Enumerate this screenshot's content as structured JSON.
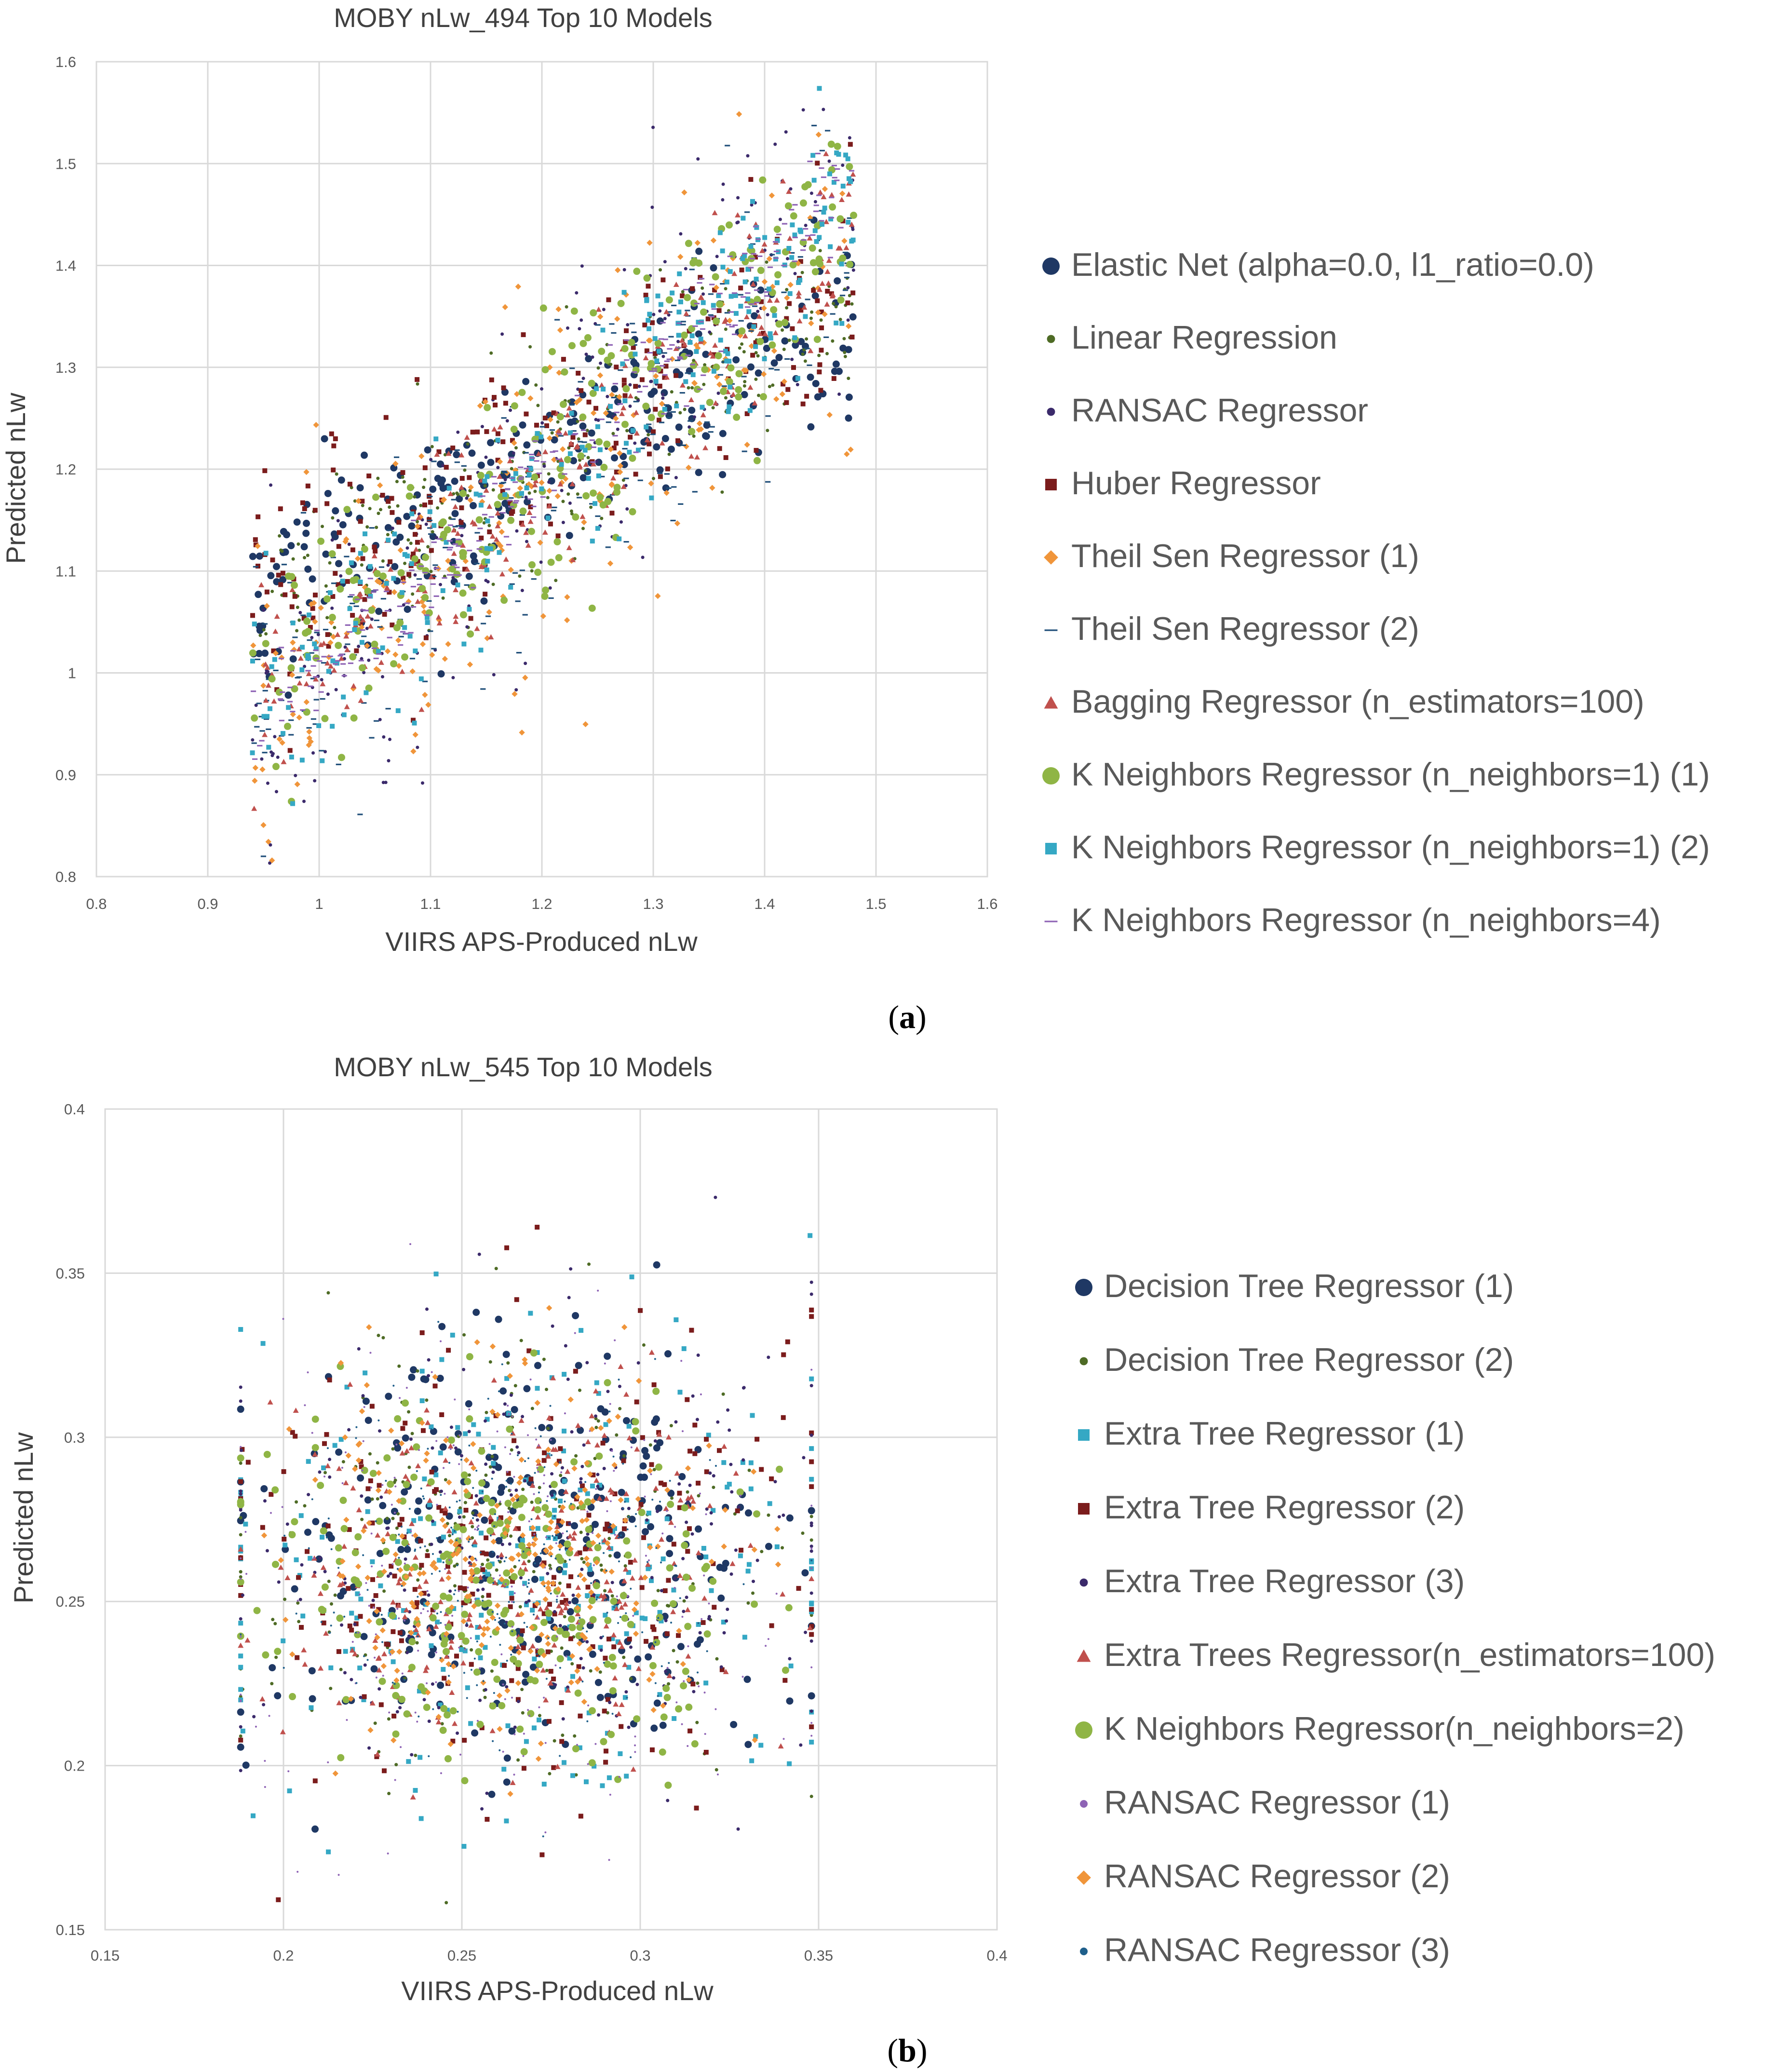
{
  "chart_data": [
    {
      "type": "scatter",
      "panel_label": "a",
      "title": "MOBY nLw_494 Top 10 Models",
      "xlabel": "VIIRS APS-Produced nLw",
      "ylabel": "Predicted nLw",
      "xlim": [
        0.8,
        1.6
      ],
      "ylim": [
        0.8,
        1.6
      ],
      "x_ticks": [
        "0.8",
        "0.9",
        "1",
        "1.1",
        "1.2",
        "1.3",
        "1.4",
        "1.5",
        "1.6"
      ],
      "y_ticks": [
        "0.8",
        "0.9",
        "1",
        "1.1",
        "1.2",
        "1.3",
        "1.4",
        "1.5",
        "1.6"
      ],
      "x_ticks_values": [
        0.8,
        0.9,
        1.0,
        1.1,
        1.2,
        1.3,
        1.4,
        1.5,
        1.6
      ],
      "y_ticks_values": [
        0.8,
        0.9,
        1.0,
        1.1,
        1.2,
        1.3,
        1.4,
        1.5,
        1.6
      ],
      "grid": true,
      "legend_position": "right",
      "x_data_range": [
        0.94,
        1.48
      ],
      "series": [
        {
          "name": "Elastic Net (alpha=0.0, l1_ratio=0.0)",
          "marker": "circle",
          "color": "#1f3864",
          "size": "large",
          "slope": 0.55,
          "intercept": 0.55,
          "spread": 0.05
        },
        {
          "name": "Linear Regression",
          "marker": "circle",
          "color": "#4e6b25",
          "size": "small",
          "slope": 0.55,
          "intercept": 0.55,
          "spread": 0.05
        },
        {
          "name": "RANSAC Regressor",
          "marker": "circle",
          "color": "#3b2a6b",
          "size": "small",
          "slope": 1.0,
          "intercept": 0.0,
          "spread": 0.09
        },
        {
          "name": "Huber Regressor",
          "marker": "square",
          "color": "#7b1c1c",
          "size": "medium",
          "slope": 0.6,
          "intercept": 0.5,
          "spread": 0.06
        },
        {
          "name": "Theil Sen Regressor (1)",
          "marker": "diamond",
          "color": "#f0953a",
          "size": "medium",
          "slope": 0.8,
          "intercept": 0.22,
          "spread": 0.08
        },
        {
          "name": "Theil Sen Regressor (2)",
          "marker": "dash",
          "color": "#1f4e79",
          "size": "small",
          "slope": 0.8,
          "intercept": 0.22,
          "spread": 0.07
        },
        {
          "name": "Bagging Regressor (n_estimators=100)",
          "marker": "triangle",
          "color": "#c0504d",
          "size": "medium",
          "slope": 0.9,
          "intercept": 0.12,
          "spread": 0.05
        },
        {
          "name": "K Neighbors Regressor (n_neighbors=1) (1)",
          "marker": "circle",
          "color": "#8fb545",
          "size": "large",
          "slope": 0.9,
          "intercept": 0.12,
          "spread": 0.06
        },
        {
          "name": "K Neighbors Regressor (n_neighbors=1) (2)",
          "marker": "square",
          "color": "#35a8c4",
          "size": "medium",
          "slope": 0.95,
          "intercept": 0.06,
          "spread": 0.05
        },
        {
          "name": "K Neighbors Regressor (n_neighbors=4)",
          "marker": "dash",
          "color": "#8e63b5",
          "size": "small",
          "slope": 1.0,
          "intercept": 0.0,
          "spread": 0.025
        }
      ]
    },
    {
      "type": "scatter",
      "panel_label": "b",
      "title": "MOBY nLw_545 Top 10 Models",
      "xlabel": "VIIRS APS-Produced nLw",
      "ylabel": "Predicted nLw",
      "xlim": [
        0.15,
        0.4
      ],
      "ylim": [
        0.15,
        0.4
      ],
      "x_ticks": [
        "0.15",
        "0.2",
        "0.25",
        "0.3",
        "0.35",
        "0.4"
      ],
      "y_ticks": [
        "0.15",
        "0.2",
        "0.25",
        "0.3",
        "0.35",
        "0.4"
      ],
      "x_ticks_values": [
        0.15,
        0.2,
        0.25,
        0.3,
        0.35,
        0.4
      ],
      "y_ticks_values": [
        0.15,
        0.2,
        0.25,
        0.3,
        0.35,
        0.4
      ],
      "grid": true,
      "legend_position": "right",
      "x_data_range": [
        0.188,
        0.348
      ],
      "series": [
        {
          "name": "Decision Tree Regressor (1)",
          "marker": "circle",
          "color": "#1f3864",
          "size": "large",
          "center": [
            0.265,
            0.262
          ],
          "spread": [
            0.04,
            0.035
          ]
        },
        {
          "name": "Decision Tree Regressor (2)",
          "marker": "circle",
          "color": "#4e6b25",
          "size": "small",
          "center": [
            0.265,
            0.262
          ],
          "spread": [
            0.04,
            0.032
          ]
        },
        {
          "name": "Extra Tree Regressor (1)",
          "marker": "square",
          "color": "#35a8c4",
          "size": "medium",
          "center": [
            0.268,
            0.262
          ],
          "spread": [
            0.042,
            0.036
          ]
        },
        {
          "name": "Extra Tree Regressor (2)",
          "marker": "square",
          "color": "#7b1c1c",
          "size": "medium",
          "center": [
            0.265,
            0.265
          ],
          "spread": [
            0.04,
            0.036
          ]
        },
        {
          "name": "Extra Tree Regressor (3)",
          "marker": "circle",
          "color": "#3b2a6b",
          "size": "small",
          "center": [
            0.268,
            0.265
          ],
          "spread": [
            0.042,
            0.036
          ]
        },
        {
          "name": "Extra Trees Regressor(n_estimators=100)",
          "marker": "triangle",
          "color": "#c0504d",
          "size": "medium",
          "center": [
            0.265,
            0.26
          ],
          "spread": [
            0.035,
            0.025
          ]
        },
        {
          "name": "K Neighbors Regressor(n_neighbors=2)",
          "marker": "circle",
          "color": "#8fb545",
          "size": "large",
          "center": [
            0.262,
            0.258
          ],
          "spread": [
            0.035,
            0.026
          ]
        },
        {
          "name": "RANSAC Regressor (1)",
          "marker": "circle",
          "color": "#8e63b5",
          "size": "tiny",
          "center": [
            0.265,
            0.262
          ],
          "spread": [
            0.04,
            0.035
          ]
        },
        {
          "name": "RANSAC Regressor (2)",
          "marker": "diamond",
          "color": "#f0953a",
          "size": "medium",
          "center": [
            0.262,
            0.262
          ],
          "spread": [
            0.03,
            0.026
          ]
        },
        {
          "name": "RANSAC Regressor (3)",
          "marker": "circle",
          "color": "#1f5f8b",
          "size": "tiny",
          "center": [
            0.262,
            0.26
          ],
          "spread": [
            0.028,
            0.024
          ]
        }
      ]
    }
  ]
}
